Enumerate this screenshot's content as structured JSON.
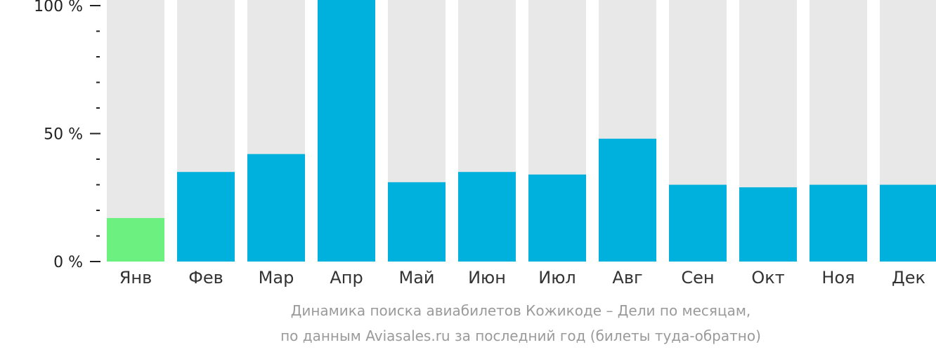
{
  "chart_data": {
    "type": "bar",
    "categories": [
      "Янв",
      "Фев",
      "Мар",
      "Апр",
      "Май",
      "Июн",
      "Июл",
      "Авг",
      "Сен",
      "Окт",
      "Ноя",
      "Дек"
    ],
    "values": [
      17,
      35,
      42,
      100,
      31,
      35,
      34,
      48,
      30,
      29,
      30,
      30
    ],
    "ylim": [
      0,
      100
    ],
    "yticks": [
      {
        "value": 0,
        "label": "0 %"
      },
      {
        "value": 50,
        "label": "50 %"
      },
      {
        "value": 100,
        "label": "100 %"
      }
    ],
    "minor_tick_step": 10,
    "colors": {
      "background_bar": "#e8e8e8",
      "bar": "#00b0dd",
      "highlight_bar": "#6cf07f",
      "axis": "#222222"
    },
    "highlight_index": 0,
    "caption": [
      "Динамика поиска авиабилетов Кожикоде – Дели по месяцам,",
      "по данным Aviasales.ru за последний год (билеты туда-обратно)"
    ]
  }
}
